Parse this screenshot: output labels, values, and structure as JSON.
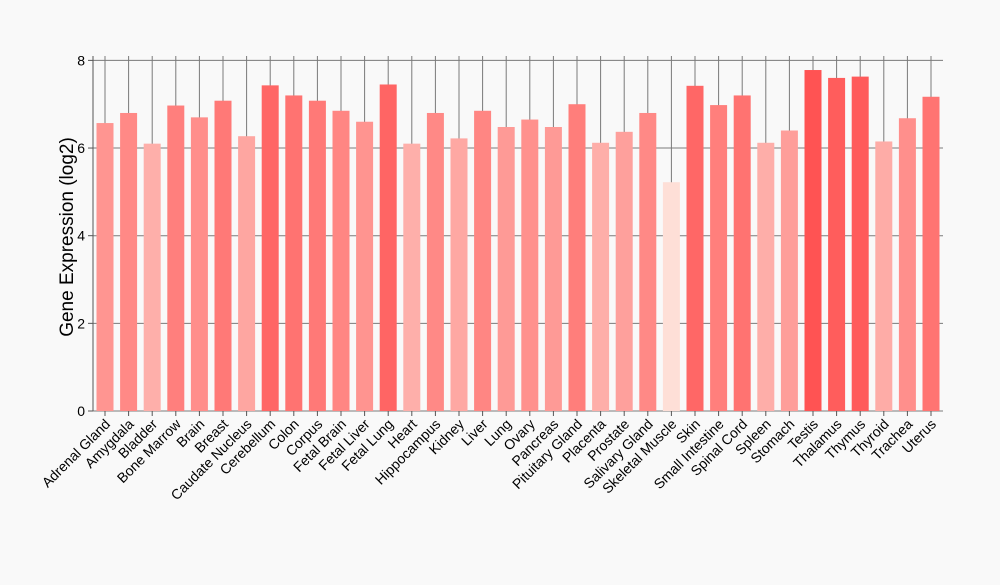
{
  "chart_data": {
    "type": "bar",
    "title": "",
    "xlabel": "",
    "ylabel": "Gene Expression (log2)",
    "ylim": [
      0,
      8.1
    ],
    "yticks": [
      0,
      2,
      4,
      6,
      8
    ],
    "grid": "horizontal",
    "categories": [
      "Adrenal Gland",
      "Amygdala",
      "Bladder",
      "Bone Marrow",
      "Brain",
      "Breast",
      "Caudate Nucleus",
      "Cerebellum",
      "Colon",
      "Corpus",
      "Fetal Brain",
      "Fetal Liver",
      "Fetal Lung",
      "Heart",
      "Hippocampus",
      "Kidney",
      "Liver",
      "Lung",
      "Ovary",
      "Pancreas",
      "Pituitary Gland",
      "Placenta",
      "Prostate",
      "Salivary Gland",
      "Skeletal Muscle",
      "Skin",
      "Small Intestine",
      "Spinal Cord",
      "Spleen",
      "Stomach",
      "Testis",
      "Thalamus",
      "Thymus",
      "Thyroid",
      "Trachea",
      "Uterus"
    ],
    "values": [
      6.57,
      6.8,
      6.1,
      6.97,
      6.7,
      7.08,
      6.27,
      7.43,
      7.2,
      7.08,
      6.85,
      6.6,
      7.45,
      6.1,
      6.8,
      6.22,
      6.85,
      6.48,
      6.65,
      6.48,
      7.0,
      6.12,
      6.37,
      6.8,
      5.22,
      7.42,
      6.98,
      7.2,
      6.12,
      6.4,
      7.78,
      7.6,
      7.63,
      6.15,
      6.68,
      7.17
    ],
    "color_scale": {
      "low": "#fee0d8",
      "high": "#ff5252",
      "domain": [
        5.2,
        7.8
      ]
    }
  }
}
